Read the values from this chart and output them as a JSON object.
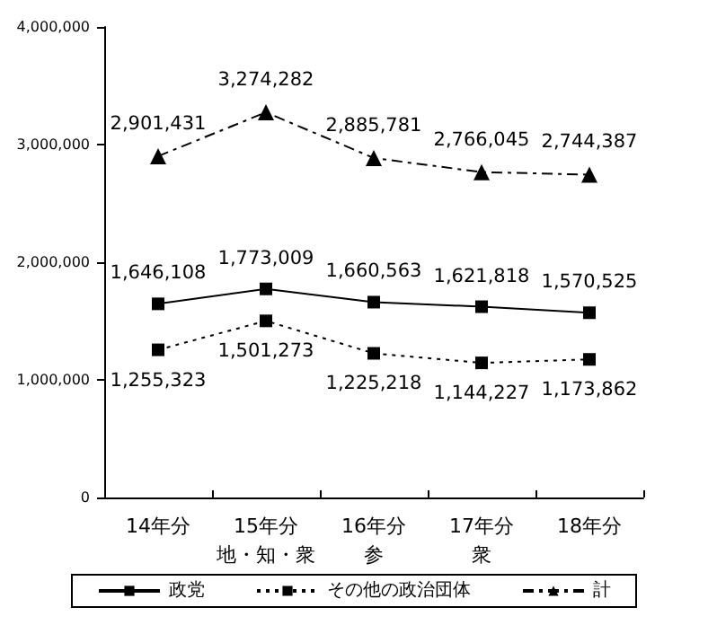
{
  "chart_data": {
    "type": "line",
    "categories": [
      "14年分",
      "15年分地・知・衆",
      "16年分参",
      "17年分衆",
      "18年分"
    ],
    "series": [
      {
        "name": "政党",
        "color": "#000000",
        "marker": "square",
        "line_style": "solid",
        "values": [
          1646108,
          1773009,
          1660563,
          1621818,
          1570525
        ],
        "value_labels": [
          "1,646,108",
          "1,773,009",
          "1,660,563",
          "1,621,818",
          "1,570,525"
        ]
      },
      {
        "name": "その他の政治団体",
        "color": "#000000",
        "marker": "square",
        "line_style": "dotted",
        "values": [
          1255323,
          1501273,
          1225218,
          1144227,
          1173862
        ],
        "value_labels": [
          "1,255,323",
          "1,501,273",
          "1,225,218",
          "1,144,227",
          "1,173,862"
        ]
      },
      {
        "name": "計",
        "color": "#000000",
        "marker": "triangle",
        "line_style": "dashed",
        "values": [
          2901431,
          3274282,
          2885781,
          2766045,
          2744387
        ],
        "value_labels": [
          "2,901,431",
          "3,274,282",
          "2,885,781",
          "2,766,045",
          "2,744,387"
        ]
      }
    ],
    "ylim": [
      0,
      4000000
    ],
    "yticks": [
      {
        "value": 0,
        "label": "0"
      },
      {
        "value": 1000000,
        "label": "1,000,000"
      },
      {
        "value": 2000000,
        "label": "2,000,000"
      },
      {
        "value": 3000000,
        "label": "3,000,000"
      },
      {
        "value": 4000000,
        "label": "4,000,000"
      }
    ],
    "grid": false,
    "legend": "bottom"
  }
}
